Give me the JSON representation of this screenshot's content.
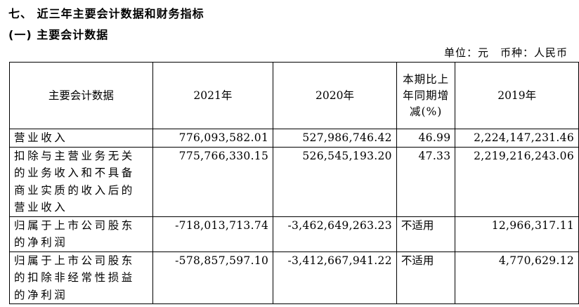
{
  "section_title": "七、 近三年主要会计数据和财务指标",
  "subsection_title": "(一) 主要会计数据",
  "unit_line": "单位：元　币种：人民币",
  "table": {
    "headers": [
      "主要会计数据",
      "2021年",
      "2020年",
      "本期比上年同期增减(%)",
      "2019年"
    ],
    "rows": [
      {
        "label": "营业收入",
        "y2021": "776,093,582.01",
        "y2020": "527,986,746.42",
        "change": "46.99",
        "y2019": "2,224,147,231.46"
      },
      {
        "label": "扣除与主营业务无关的业务收入和不具备商业实质的收入后的营业收入",
        "y2021": "775,766,330.15",
        "y2020": "526,545,193.20",
        "change": "47.33",
        "y2019": "2,219,216,243.06"
      },
      {
        "label": "归属于上市公司股东的净利润",
        "y2021": "-718,013,713.74",
        "y2020": "-3,462,649,263.23",
        "change": "不适用",
        "y2019": "12,966,317.11"
      },
      {
        "label": "归属于上市公司股东的扣除非经常性损益的净利润",
        "y2021": "-578,857,597.10",
        "y2020": "-3,412,667,941.22",
        "change": "不适用",
        "y2019": "4,770,629.12"
      }
    ]
  }
}
